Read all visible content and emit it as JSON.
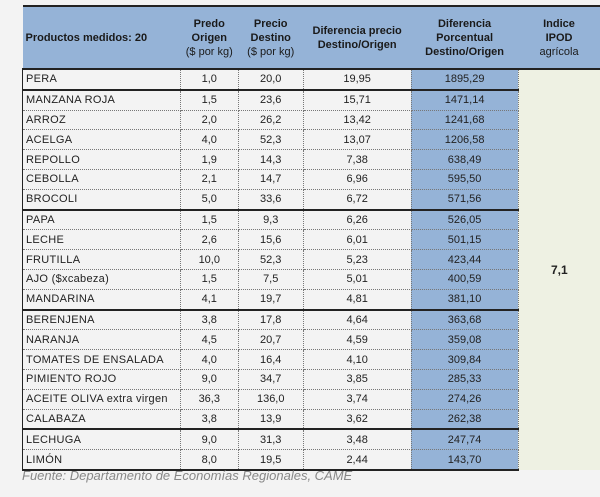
{
  "headers": {
    "product": "Productos medidos: 20",
    "origen": [
      "Predo",
      "Origen",
      "($ por kg)"
    ],
    "destino": [
      "Precio",
      "Destino",
      "($ por kg)"
    ],
    "diff": [
      "Diferencia precio",
      "Destino/Origen"
    ],
    "pct": [
      "Diferencia",
      "Porcentual",
      "Destino/Origen"
    ],
    "ipod": [
      "Indice",
      "IPOD",
      "agrícola"
    ]
  },
  "ipod_value": "7,1",
  "rows": [
    [
      "PERA",
      "1,0",
      "20,0",
      "19,95",
      "1895,29"
    ],
    [
      "MANZANA ROJA",
      "1,5",
      "23,6",
      "15,71",
      "1471,14"
    ],
    [
      "ARROZ",
      "2,0",
      "26,2",
      "13,42",
      "1241,68"
    ],
    [
      "ACELGA",
      "4,0",
      "52,3",
      "13,07",
      "1206,58"
    ],
    [
      "REPOLLO",
      "1,9",
      "14,3",
      "7,38",
      "638,49"
    ],
    [
      "CEBOLLA",
      "2,1",
      "14,7",
      "6,96",
      "595,50"
    ],
    [
      "BROCOLI",
      "5,0",
      "33,6",
      "6,72",
      "571,56"
    ],
    [
      "PAPA",
      "1,5",
      "9,3",
      "6,26",
      "526,05"
    ],
    [
      "LECHE",
      "2,6",
      "15,6",
      "6,01",
      "501,15"
    ],
    [
      "FRUTILLA",
      "10,0",
      "52,3",
      "5,23",
      "423,44"
    ],
    [
      "AJO  ($xcabeza)",
      "1,5",
      "7,5",
      "5,01",
      "400,59"
    ],
    [
      "MANDARINA",
      "4,1",
      "19,7",
      "4,81",
      "381,10"
    ],
    [
      "BERENJENA",
      "3,8",
      "17,8",
      "4,64",
      "363,68"
    ],
    [
      "NARANJA",
      "4,5",
      "20,7",
      "4,59",
      "359,08"
    ],
    [
      "TOMATES DE ENSALADA",
      "4,0",
      "16,4",
      "4,10",
      "309,84"
    ],
    [
      "PIMIENTO ROJO",
      "9,0",
      "34,7",
      "3,85",
      "285,33"
    ],
    [
      "ACEITE OLIVA extra virgen",
      "36,3",
      "136,0",
      "3,74",
      "274,26"
    ],
    [
      "CALABAZA",
      "3,8",
      "13,9",
      "3,62",
      "262,38"
    ],
    [
      "LECHUGA",
      "9,0",
      "31,3",
      "3,48",
      "247,74"
    ],
    [
      "LIMÓN",
      "8,0",
      "19,5",
      "2,44",
      "143,70"
    ]
  ],
  "source": "Fuente: Departamento de Economías Regionales, CAME"
}
